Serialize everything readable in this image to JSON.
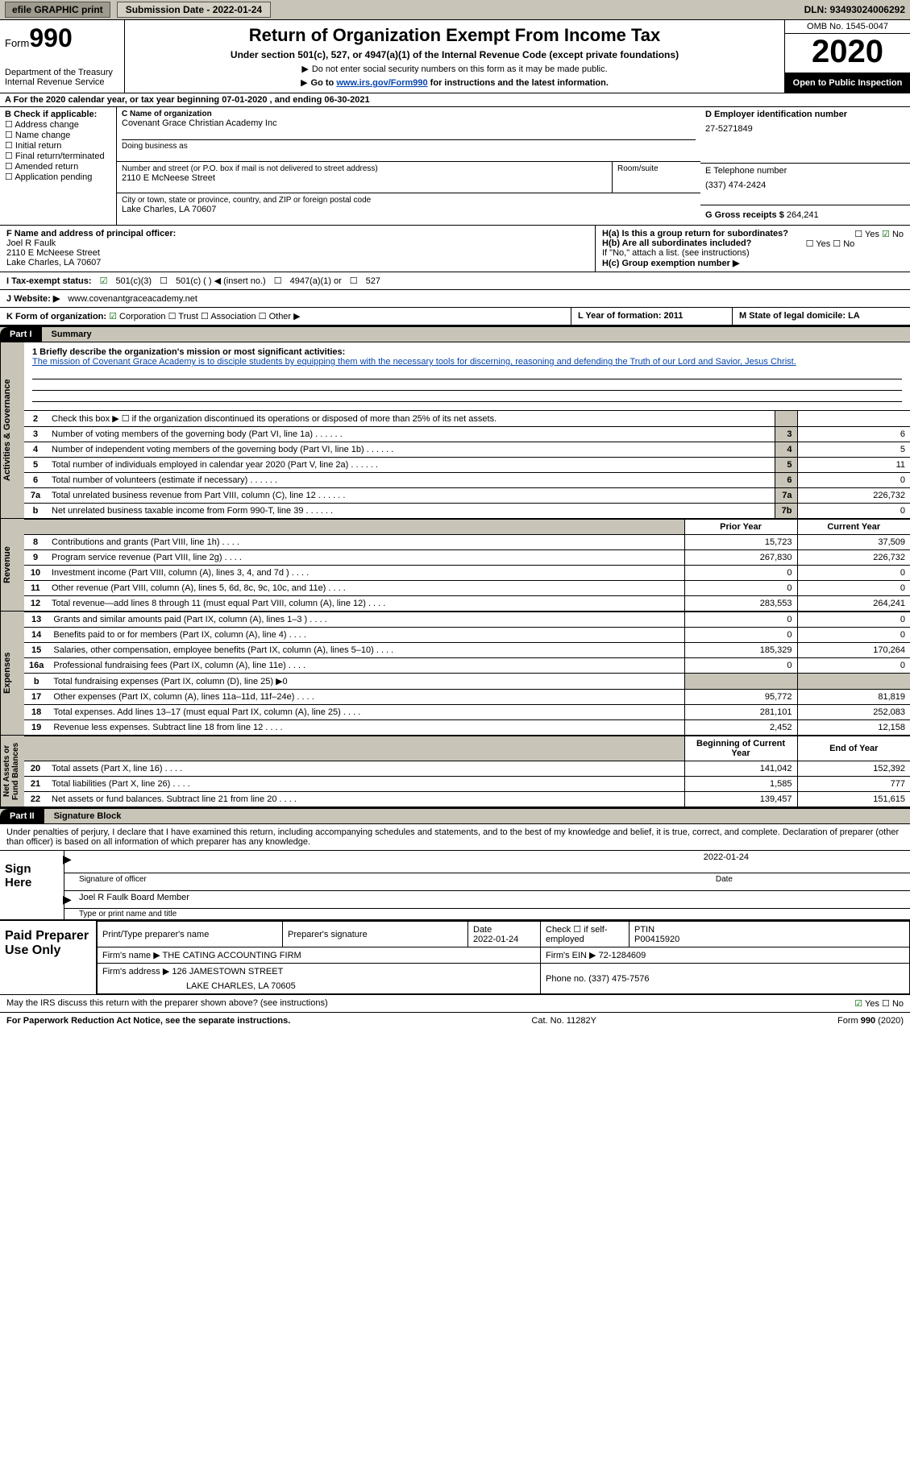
{
  "colors": {
    "shade": "#c8c4b8",
    "black": "#000000",
    "link": "#0645ad",
    "check": "#006400"
  },
  "topbar": {
    "efile": "efile GRAPHIC print",
    "submission": "Submission Date - 2022-01-24",
    "dln": "DLN: 93493024006292"
  },
  "header": {
    "form_word": "Form",
    "form_num": "990",
    "dept": "Department of the Treasury\nInternal Revenue Service",
    "title": "Return of Organization Exempt From Income Tax",
    "subtitle": "Under section 501(c), 527, or 4947(a)(1) of the Internal Revenue Code (except private foundations)",
    "note1": "Do not enter social security numbers on this form as it may be made public.",
    "note2_pre": "Go to ",
    "note2_link": "www.irs.gov/Form990",
    "note2_post": " for instructions and the latest information.",
    "omb": "OMB No. 1545-0047",
    "year": "2020",
    "open": "Open to Public Inspection"
  },
  "rowA": "A For the 2020 calendar year, or tax year beginning 07-01-2020    , and ending 06-30-2021",
  "boxB": {
    "label": "B Check if applicable:",
    "items": [
      "Address change",
      "Name change",
      "Initial return",
      "Final return/terminated",
      "Amended return",
      "Application pending"
    ]
  },
  "boxC": {
    "label": "C Name of organization",
    "name": "Covenant Grace Christian Academy Inc",
    "dba_label": "Doing business as",
    "addr_label": "Number and street (or P.O. box if mail is not delivered to street address)",
    "room_label": "Room/suite",
    "street": "2110 E McNeese Street",
    "city_label": "City or town, state or province, country, and ZIP or foreign postal code",
    "csz": "Lake Charles, LA  70607"
  },
  "boxD": {
    "label": "D Employer identification number",
    "value": "27-5271849"
  },
  "boxE": {
    "label": "E Telephone number",
    "value": "(337) 474-2424"
  },
  "boxG": {
    "label": "G Gross receipts $",
    "value": "264,241"
  },
  "boxF": {
    "label": "F  Name and address of principal officer:",
    "name": "Joel R Faulk",
    "street": "2110 E McNeese Street",
    "csz": "Lake Charles, LA  70607"
  },
  "boxH": {
    "a": "H(a)  Is this a group return for subordinates?",
    "a_yes": "Yes",
    "a_no": "No",
    "b": "H(b)  Are all subordinates included?",
    "b_note": "If \"No,\" attach a list. (see instructions)",
    "c": "H(c)  Group exemption number ▶"
  },
  "rowI": {
    "label": "I    Tax-exempt status:",
    "opts": [
      "501(c)(3)",
      "501(c) (  ) ◀ (insert no.)",
      "4947(a)(1) or",
      "527"
    ]
  },
  "rowJ": {
    "label": "J   Website: ▶",
    "value": "www.covenantgraceacademy.net"
  },
  "rowK": {
    "label": "K Form of organization:",
    "opts": [
      "Corporation",
      "Trust",
      "Association",
      "Other ▶"
    ],
    "L": "L Year of formation: 2011",
    "M": "M State of legal domicile: LA"
  },
  "part1": {
    "label": "Part I",
    "title": "Summary"
  },
  "mission": {
    "q": "1  Briefly describe the organization's mission or most significant activities:",
    "text": "The mission of Covenant Grace Academy is to disciple students by equipping them with the necessary tools for discerning, reasoning and defending the Truth of our Lord and Savior, Jesus Christ."
  },
  "gov_rows": [
    {
      "n": "2",
      "text": "Check this box ▶ ☐  if the organization discontinued its operations or disposed of more than 25% of its net assets.",
      "num": "",
      "val": ""
    },
    {
      "n": "3",
      "text": "Number of voting members of the governing body (Part VI, line 1a)",
      "num": "3",
      "val": "6"
    },
    {
      "n": "4",
      "text": "Number of independent voting members of the governing body (Part VI, line 1b)",
      "num": "4",
      "val": "5"
    },
    {
      "n": "5",
      "text": "Total number of individuals employed in calendar year 2020 (Part V, line 2a)",
      "num": "5",
      "val": "11"
    },
    {
      "n": "6",
      "text": "Total number of volunteers (estimate if necessary)",
      "num": "6",
      "val": "0"
    },
    {
      "n": "7a",
      "text": "Total unrelated business revenue from Part VIII, column (C), line 12",
      "num": "7a",
      "val": "226,732"
    },
    {
      "n": "b",
      "text": "Net unrelated business taxable income from Form 990-T, line 39",
      "num": "7b",
      "val": "0"
    }
  ],
  "col_hdrs": {
    "prior": "Prior Year",
    "current": "Current Year"
  },
  "rev_rows": [
    {
      "n": "8",
      "text": "Contributions and grants (Part VIII, line 1h)",
      "p": "15,723",
      "c": "37,509"
    },
    {
      "n": "9",
      "text": "Program service revenue (Part VIII, line 2g)",
      "p": "267,830",
      "c": "226,732"
    },
    {
      "n": "10",
      "text": "Investment income (Part VIII, column (A), lines 3, 4, and 7d )",
      "p": "0",
      "c": "0"
    },
    {
      "n": "11",
      "text": "Other revenue (Part VIII, column (A), lines 5, 6d, 8c, 9c, 10c, and 11e)",
      "p": "0",
      "c": "0"
    },
    {
      "n": "12",
      "text": "Total revenue—add lines 8 through 11 (must equal Part VIII, column (A), line 12)",
      "p": "283,553",
      "c": "264,241"
    }
  ],
  "exp_rows": [
    {
      "n": "13",
      "text": "Grants and similar amounts paid (Part IX, column (A), lines 1–3 )",
      "p": "0",
      "c": "0"
    },
    {
      "n": "14",
      "text": "Benefits paid to or for members (Part IX, column (A), line 4)",
      "p": "0",
      "c": "0"
    },
    {
      "n": "15",
      "text": "Salaries, other compensation, employee benefits (Part IX, column (A), lines 5–10)",
      "p": "185,329",
      "c": "170,264"
    },
    {
      "n": "16a",
      "text": "Professional fundraising fees (Part IX, column (A), line 11e)",
      "p": "0",
      "c": "0"
    },
    {
      "n": "b",
      "text": "Total fundraising expenses (Part IX, column (D), line 25) ▶0",
      "p": "",
      "c": "",
      "shade": true
    },
    {
      "n": "17",
      "text": "Other expenses (Part IX, column (A), lines 11a–11d, 11f–24e)",
      "p": "95,772",
      "c": "81,819"
    },
    {
      "n": "18",
      "text": "Total expenses. Add lines 13–17 (must equal Part IX, column (A), line 25)",
      "p": "281,101",
      "c": "252,083"
    },
    {
      "n": "19",
      "text": "Revenue less expenses. Subtract line 18 from line 12",
      "p": "2,452",
      "c": "12,158"
    }
  ],
  "na_hdrs": {
    "begin": "Beginning of Current Year",
    "end": "End of Year"
  },
  "na_rows": [
    {
      "n": "20",
      "text": "Total assets (Part X, line 16)",
      "p": "141,042",
      "c": "152,392"
    },
    {
      "n": "21",
      "text": "Total liabilities (Part X, line 26)",
      "p": "1,585",
      "c": "777"
    },
    {
      "n": "22",
      "text": "Net assets or fund balances. Subtract line 21 from line 20",
      "p": "139,457",
      "c": "151,615"
    }
  ],
  "vert_labels": {
    "gov": "Activities & Governance",
    "rev": "Revenue",
    "exp": "Expenses",
    "na": "Net Assets or\nFund Balances"
  },
  "part2": {
    "label": "Part II",
    "title": "Signature Block"
  },
  "sig": {
    "decl": "Under penalties of perjury, I declare that I have examined this return, including accompanying schedules and statements, and to the best of my knowledge and belief, it is true, correct, and complete. Declaration of preparer (other than officer) is based on all information of which preparer has any knowledge.",
    "sign_here": "Sign Here",
    "sig_officer": "Signature of officer",
    "date_label": "Date",
    "date_val": "2022-01-24",
    "name_title": "Joel R Faulk  Board Member",
    "type_name": "Type or print name and title"
  },
  "prep": {
    "label": "Paid Preparer Use Only",
    "h1": "Print/Type preparer's name",
    "h2": "Preparer's signature",
    "h3_date": "Date",
    "h3_val": "2022-01-24",
    "h4": "Check ☐  if self-employed",
    "h5": "PTIN",
    "ptin": "P00415920",
    "firm_name_l": "Firm's name    ▶",
    "firm_name": "THE CATING ACCOUNTING FIRM",
    "firm_ein_l": "Firm's EIN ▶",
    "firm_ein": "72-1284609",
    "firm_addr_l": "Firm's address ▶",
    "firm_addr1": "126 JAMESTOWN STREET",
    "firm_addr2": "LAKE CHARLES, LA  70605",
    "phone_l": "Phone no.",
    "phone": "(337) 475-7576"
  },
  "footer": {
    "discuss": "May the IRS discuss this return with the preparer shown above? (see instructions)",
    "yes": "Yes",
    "no": "No",
    "pra": "For Paperwork Reduction Act Notice, see the separate instructions.",
    "cat": "Cat. No. 11282Y",
    "form": "Form 990 (2020)"
  }
}
